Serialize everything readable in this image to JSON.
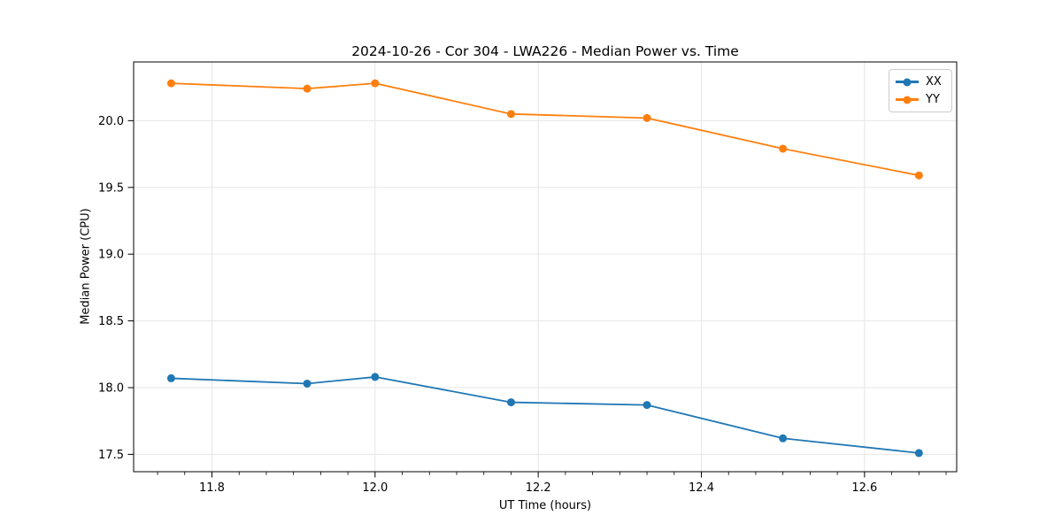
{
  "chart_data": {
    "type": "line",
    "title": "2024-10-26 - Cor 304 - LWA226 - Median Power vs. Time",
    "xlabel": "UT Time (hours)",
    "ylabel": "Median Power (CPU)",
    "x": [
      11.75,
      11.9167,
      12.0,
      12.1667,
      12.3333,
      12.5,
      12.6667
    ],
    "series": [
      {
        "name": "XX",
        "color": "#1f77b4",
        "values": [
          18.07,
          18.03,
          18.08,
          17.89,
          17.87,
          17.62,
          17.51
        ]
      },
      {
        "name": "YY",
        "color": "#ff7f0e",
        "values": [
          20.28,
          20.24,
          20.28,
          20.05,
          20.02,
          19.79,
          19.59
        ]
      }
    ],
    "xlim": [
      11.704,
      12.713
    ],
    "ylim": [
      17.37,
      20.44
    ],
    "xticks": [
      11.8,
      12.0,
      12.2,
      12.4,
      12.6
    ],
    "xtick_labels": [
      "11.8",
      "12.0",
      "12.2",
      "12.4",
      "12.6"
    ],
    "yticks": [
      17.5,
      18.0,
      18.5,
      19.0,
      19.5,
      20.0
    ],
    "ytick_labels": [
      "17.5",
      "18.0",
      "18.5",
      "19.0",
      "19.5",
      "20.0"
    ],
    "x_minor_divisions": 6,
    "grid": true,
    "legend_position": "upper right",
    "colors": {
      "grid": "#e6e6e6",
      "spine": "#000000",
      "tick": "#000000",
      "text": "#000000",
      "background": "#ffffff"
    }
  }
}
